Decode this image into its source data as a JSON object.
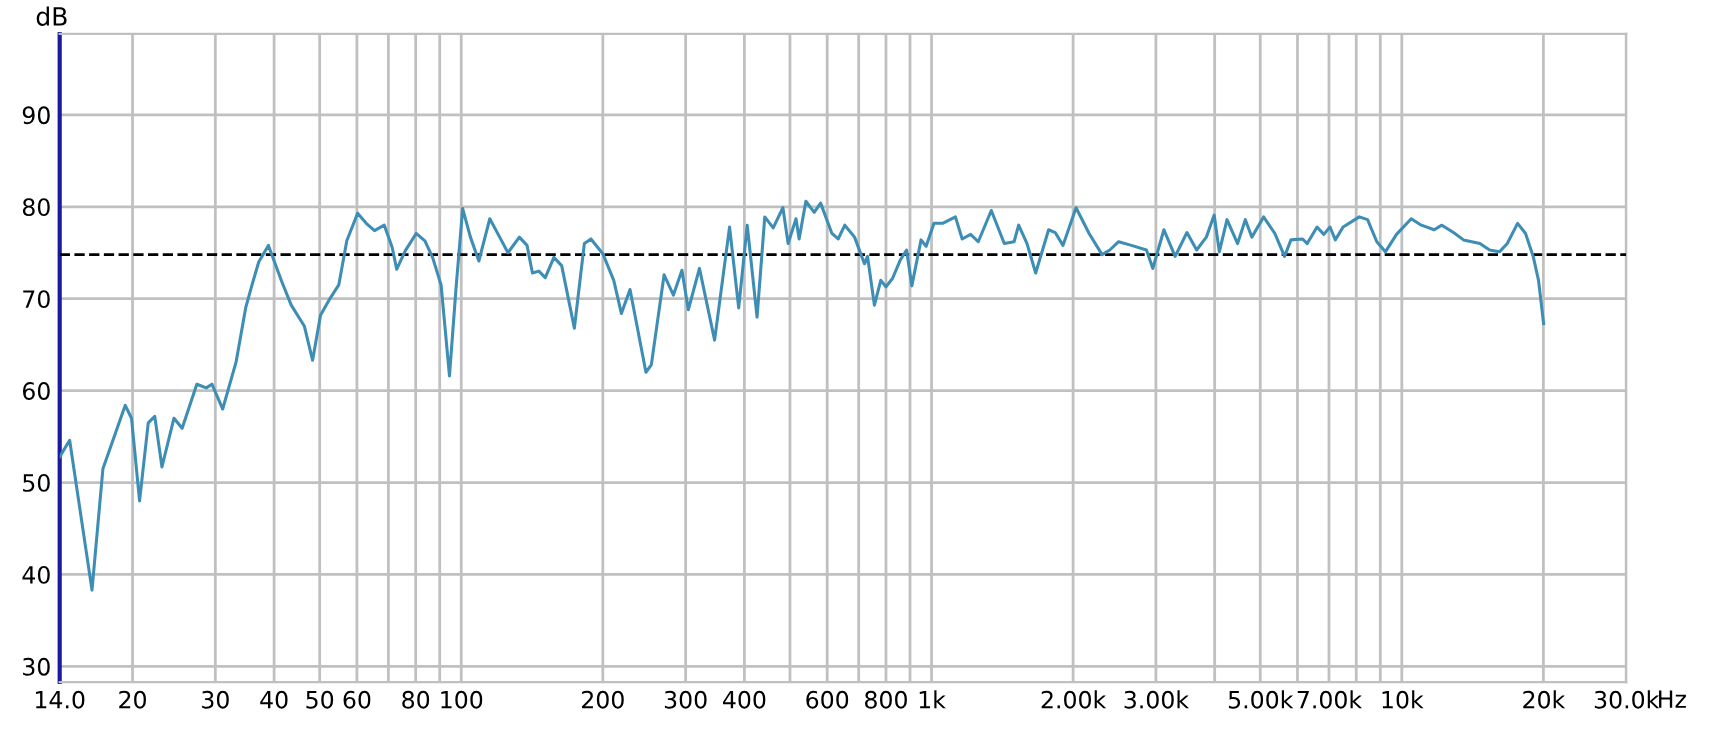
{
  "chart_data": {
    "type": "line",
    "ylabel": "dB",
    "log": "x",
    "grid": true,
    "marker": "none",
    "line_style": "solid",
    "xlabel": "Hz",
    "xlim": [
      14,
      30000
    ],
    "ylim": [
      28.3,
      98.8
    ],
    "xticks": [
      {
        "value": 14,
        "label": "14.0"
      },
      20,
      30,
      40,
      50,
      60,
      {
        "value": 70,
        "label": null
      },
      80,
      {
        "value": 90,
        "label": null
      },
      100,
      200,
      300,
      400,
      {
        "value": 500,
        "label": null
      },
      600,
      {
        "value": 700,
        "label": null
      },
      800,
      {
        "value": 900,
        "label": null
      },
      {
        "value": 1000,
        "label": "1k"
      },
      {
        "value": 2000,
        "label": "2.00k"
      },
      {
        "value": 3000,
        "label": "3.00k"
      },
      {
        "value": 4000,
        "label": null
      },
      {
        "value": 5000,
        "label": "5.00k"
      },
      {
        "value": 6000,
        "label": null
      },
      {
        "value": 7000,
        "label": "7.00k"
      },
      {
        "value": 8000,
        "label": null
      },
      {
        "value": 9000,
        "label": null
      },
      {
        "value": 10000,
        "label": "10k"
      },
      {
        "value": 20000,
        "label": "20k"
      },
      {
        "value": 30000,
        "label": "30.0k"
      }
    ],
    "yticks": [
      30,
      40,
      50,
      60,
      70,
      80,
      90
    ],
    "ref_lines": [
      {
        "axis": "y",
        "value": 74.8,
        "color": "#000000",
        "line_style": "dashed"
      }
    ],
    "series": [
      {
        "color": "#3d8db5",
        "x": [
          14,
          14.7,
          16.4,
          17.3,
          19.3,
          19.9,
          20.7,
          21.6,
          22.3,
          23.1,
          24.5,
          25.5,
          27.4,
          28.7,
          29.5,
          31.1,
          33.2,
          34.8,
          35.9,
          37.1,
          38.9,
          41.5,
          43.5,
          46.4,
          48.3,
          50.2,
          52.7,
          54.9,
          57.1,
          60.2,
          62.8,
          65.4,
          68.6,
          71.3,
          72.9,
          76,
          80.2,
          83.7,
          86.9,
          90.6,
          94.4,
          97.5,
          100.7,
          104.6,
          109,
          115,
          120.7,
          125.7,
          132.9,
          138,
          141.7,
          146.2,
          150.9,
          157.4,
          163.5,
          174,
          182.7,
          188.7,
          200,
          211,
          219,
          228.5,
          247,
          253.6,
          270,
          282.6,
          294.6,
          304,
          321,
          345.7,
          372,
          389,
          405.6,
          425.6,
          442,
          460.6,
          483,
          495.5,
          515,
          523,
          540.5,
          563,
          581,
          614,
          633,
          654,
          686,
          720,
          731,
          756,
          780,
          800,
          826,
          858,
          885,
          908,
          950,
          974,
          1012,
          1056,
          1124,
          1162,
          1211,
          1257,
          1340,
          1428,
          1498,
          1532,
          1596,
          1665,
          1774,
          1832,
          1903,
          2029,
          2163,
          2305,
          2394,
          2499,
          2661,
          2864,
          2955,
          3120,
          3296,
          3492,
          3662,
          3840,
          3990,
          4092,
          4249,
          4475,
          4648,
          4799,
          5082,
          5369,
          5632,
          5811,
          6153,
          6293,
          6602,
          6825,
          7036,
          7221,
          7501,
          8121,
          8456,
          8848,
          9226,
          9744,
          10472,
          11004,
          11718,
          12166,
          12880,
          13524,
          14658,
          15372,
          16128,
          16758,
          17626,
          18326,
          19026,
          19530,
          20020
        ],
        "values": [
          52.8,
          54.6,
          38.3,
          51.5,
          58.4,
          57,
          48,
          56.5,
          57.2,
          51.7,
          57,
          55.9,
          60.7,
          60.3,
          60.7,
          58,
          63.1,
          69,
          71.5,
          74,
          75.8,
          71.9,
          69.3,
          67,
          63.3,
          68.2,
          70.1,
          71.5,
          76.3,
          79.3,
          78.2,
          77.4,
          78,
          75.6,
          73.2,
          75.2,
          77.1,
          76.3,
          74.5,
          71.5,
          61.6,
          71.2,
          79.8,
          76.7,
          74.1,
          78.7,
          76.7,
          75,
          76.7,
          75.8,
          72.8,
          73,
          72.3,
          74.5,
          73.6,
          66.8,
          76,
          76.5,
          74.9,
          72,
          68.4,
          71,
          62,
          62.8,
          72.6,
          70.4,
          73.1,
          68.8,
          73.3,
          65.5,
          77.8,
          69,
          78,
          68,
          78.9,
          77.7,
          79.9,
          76,
          78.7,
          76.5,
          80.6,
          79.4,
          80.4,
          77.1,
          76.5,
          78,
          76.7,
          73.8,
          74.6,
          69.3,
          72,
          71.3,
          72.2,
          74.2,
          75.3,
          71.4,
          76.4,
          75.7,
          78.2,
          78.2,
          78.9,
          76.5,
          77,
          76.2,
          79.6,
          76,
          76.2,
          78,
          76,
          72.8,
          77.5,
          77.2,
          75.8,
          79.9,
          77.1,
          74.8,
          75.3,
          76.2,
          75.8,
          75.3,
          73.3,
          77.5,
          74.6,
          77.2,
          75.3,
          76.7,
          79.1,
          75.1,
          78.6,
          76,
          78.6,
          76.7,
          78.9,
          77.1,
          74.6,
          76.4,
          76.5,
          76,
          77.8,
          77,
          77.8,
          76.4,
          77.8,
          78.9,
          78.6,
          76.2,
          75.1,
          77,
          78.7,
          78,
          77.5,
          78,
          77.2,
          76.4,
          76,
          75.3,
          75.1,
          76,
          78.2,
          77.1,
          74.6,
          72,
          67.3
        ]
      }
    ]
  }
}
